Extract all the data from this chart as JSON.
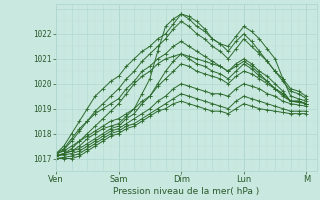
{
  "xlabel": "Pression niveau de la mer( hPa )",
  "bg_color": "#c8e8e0",
  "plot_bg_color": "#c8e8e0",
  "grid_major_color": "#b0d8d0",
  "grid_minor_color": "#c0e0d8",
  "line_color": "#2d6b2d",
  "x_ticks": [
    0,
    24,
    48,
    72,
    96
  ],
  "x_tick_labels": [
    "Ven",
    "Sam",
    "Dim",
    "Lun",
    "M"
  ],
  "ylim": [
    1016.5,
    1023.2
  ],
  "yticks": [
    1017,
    1018,
    1019,
    1020,
    1021,
    1022
  ],
  "xlim": [
    0,
    100
  ],
  "lines": [
    {
      "x": [
        0,
        3,
        6,
        9,
        12,
        15,
        18,
        21,
        24,
        27,
        30,
        33,
        36,
        39,
        42,
        45,
        48,
        51,
        54,
        57,
        60,
        63,
        66,
        69,
        72,
        75,
        78,
        81,
        84,
        87,
        90,
        93,
        96
      ],
      "y": [
        1017.1,
        1017.2,
        1017.3,
        1017.5,
        1017.8,
        1018.0,
        1018.2,
        1018.3,
        1018.4,
        1018.7,
        1019.0,
        1019.6,
        1020.2,
        1021.3,
        1022.3,
        1022.6,
        1022.8,
        1022.7,
        1022.5,
        1022.2,
        1021.8,
        1021.6,
        1021.5,
        1021.9,
        1022.3,
        1022.1,
        1021.8,
        1021.4,
        1021.0,
        1020.2,
        1019.5,
        1019.4,
        1019.3
      ]
    },
    {
      "x": [
        0,
        3,
        6,
        9,
        12,
        15,
        18,
        21,
        24,
        27,
        30,
        33,
        36,
        39,
        42,
        45,
        48,
        51,
        54,
        57,
        60,
        63,
        66,
        69,
        72,
        75,
        78,
        81,
        84,
        87,
        90,
        93,
        96
      ],
      "y": [
        1017.1,
        1017.2,
        1017.3,
        1017.4,
        1017.6,
        1017.8,
        1018.0,
        1018.2,
        1018.3,
        1018.6,
        1018.8,
        1019.2,
        1019.5,
        1020.0,
        1020.5,
        1020.9,
        1021.2,
        1021.1,
        1021.0,
        1020.9,
        1020.8,
        1020.7,
        1020.5,
        1020.8,
        1021.0,
        1020.8,
        1020.5,
        1020.3,
        1020.0,
        1019.7,
        1019.3,
        1019.3,
        1019.2
      ]
    },
    {
      "x": [
        0,
        3,
        6,
        9,
        12,
        15,
        18,
        21,
        24,
        27,
        30,
        33,
        36,
        39,
        42,
        45,
        48,
        51,
        54,
        57,
        60,
        63,
        66,
        69,
        72,
        75,
        78,
        81,
        84,
        87,
        90,
        93,
        96
      ],
      "y": [
        1017.2,
        1017.3,
        1017.5,
        1017.7,
        1017.9,
        1018.1,
        1018.3,
        1018.5,
        1018.6,
        1018.8,
        1019.0,
        1019.3,
        1019.5,
        1019.9,
        1020.2,
        1020.5,
        1020.8,
        1020.7,
        1020.5,
        1020.4,
        1020.3,
        1020.2,
        1020.0,
        1020.3,
        1020.5,
        1020.4,
        1020.2,
        1020.0,
        1019.8,
        1019.6,
        1019.3,
        1019.3,
        1019.2
      ]
    },
    {
      "x": [
        0,
        3,
        6,
        9,
        12,
        15,
        18,
        21,
        24,
        27,
        30,
        33,
        36,
        39,
        42,
        45,
        48,
        51,
        54,
        57,
        60,
        63,
        66,
        69,
        72,
        75,
        78,
        81,
        84,
        87,
        90,
        93,
        96
      ],
      "y": [
        1017.1,
        1017.15,
        1017.2,
        1017.3,
        1017.5,
        1017.7,
        1017.9,
        1018.1,
        1018.2,
        1018.4,
        1018.6,
        1018.8,
        1019.0,
        1019.3,
        1019.5,
        1019.8,
        1020.0,
        1019.9,
        1019.8,
        1019.7,
        1019.6,
        1019.6,
        1019.5,
        1019.8,
        1020.0,
        1019.9,
        1019.8,
        1019.6,
        1019.5,
        1019.3,
        1019.2,
        1019.15,
        1019.1
      ]
    },
    {
      "x": [
        0,
        3,
        6,
        9,
        12,
        15,
        18,
        21,
        24,
        27,
        30,
        33,
        36,
        39,
        42,
        45,
        48,
        51,
        54,
        57,
        60,
        63,
        66,
        69,
        72,
        75,
        78,
        81,
        84,
        87,
        90,
        93,
        96
      ],
      "y": [
        1017.0,
        1017.05,
        1017.1,
        1017.2,
        1017.4,
        1017.6,
        1017.8,
        1018.0,
        1018.1,
        1018.3,
        1018.4,
        1018.6,
        1018.8,
        1019.0,
        1019.2,
        1019.4,
        1019.6,
        1019.5,
        1019.4,
        1019.3,
        1019.2,
        1019.1,
        1019.0,
        1019.3,
        1019.5,
        1019.4,
        1019.3,
        1019.2,
        1019.1,
        1019.0,
        1018.9,
        1018.9,
        1018.9
      ]
    },
    {
      "x": [
        0,
        3,
        6,
        9,
        12,
        15,
        18,
        21,
        24,
        27,
        30,
        33,
        36,
        39,
        42,
        45,
        48,
        51,
        54,
        57,
        60,
        63,
        66,
        69,
        72,
        75,
        78,
        81,
        84,
        87,
        90,
        93,
        96
      ],
      "y": [
        1017.0,
        1017.0,
        1017.0,
        1017.1,
        1017.3,
        1017.5,
        1017.7,
        1017.9,
        1018.0,
        1018.2,
        1018.3,
        1018.5,
        1018.7,
        1018.9,
        1019.0,
        1019.2,
        1019.3,
        1019.2,
        1019.1,
        1019.0,
        1018.9,
        1018.9,
        1018.8,
        1019.0,
        1019.2,
        1019.1,
        1019.0,
        1018.95,
        1018.9,
        1018.85,
        1018.8,
        1018.8,
        1018.8
      ]
    },
    {
      "x": [
        0,
        3,
        6,
        9,
        12,
        15,
        18,
        21,
        24,
        27,
        30,
        33,
        36,
        39,
        42,
        45,
        48,
        51,
        54,
        57,
        60,
        63,
        66,
        69,
        72,
        75,
        78,
        81,
        84,
        87,
        90,
        93,
        96
      ],
      "y": [
        1017.1,
        1017.2,
        1017.4,
        1017.7,
        1018.0,
        1018.3,
        1018.6,
        1018.9,
        1019.2,
        1019.6,
        1020.0,
        1020.3,
        1020.5,
        1020.8,
        1021.0,
        1021.1,
        1021.2,
        1021.0,
        1020.8,
        1020.7,
        1020.5,
        1020.4,
        1020.2,
        1020.5,
        1020.8,
        1020.6,
        1020.3,
        1020.1,
        1019.8,
        1019.6,
        1019.3,
        1019.3,
        1019.2
      ]
    },
    {
      "x": [
        0,
        3,
        6,
        9,
        12,
        15,
        18,
        21,
        24,
        27,
        30,
        33,
        36,
        39,
        42,
        45,
        48,
        51,
        54,
        57,
        60,
        63,
        66,
        69,
        72,
        75,
        78,
        81,
        84,
        87,
        90,
        93,
        96
      ],
      "y": [
        1017.2,
        1017.4,
        1017.8,
        1018.2,
        1018.5,
        1018.9,
        1019.2,
        1019.5,
        1019.8,
        1020.2,
        1020.5,
        1020.9,
        1021.2,
        1021.5,
        1021.8,
        1022.2,
        1022.5,
        1022.3,
        1022.0,
        1021.8,
        1021.5,
        1021.3,
        1021.0,
        1021.4,
        1021.8,
        1021.5,
        1021.2,
        1020.9,
        1020.5,
        1020.2,
        1019.8,
        1019.7,
        1019.5
      ]
    },
    {
      "x": [
        0,
        3,
        6,
        9,
        12,
        15,
        18,
        21,
        24,
        27,
        30,
        33,
        36,
        39,
        42,
        45,
        48,
        51,
        54,
        57,
        60,
        63,
        66,
        69,
        72,
        75,
        78,
        81,
        84,
        87,
        90,
        93,
        96
      ],
      "y": [
        1017.2,
        1017.5,
        1018.0,
        1018.5,
        1019.0,
        1019.5,
        1019.8,
        1020.1,
        1020.3,
        1020.7,
        1021.0,
        1021.3,
        1021.5,
        1021.8,
        1022.0,
        1022.4,
        1022.8,
        1022.6,
        1022.3,
        1022.1,
        1021.8,
        1021.6,
        1021.3,
        1021.7,
        1022.0,
        1021.7,
        1021.3,
        1020.9,
        1020.5,
        1020.1,
        1019.7,
        1019.6,
        1019.4
      ]
    },
    {
      "x": [
        0,
        3,
        6,
        9,
        12,
        15,
        18,
        21,
        24,
        27,
        30,
        33,
        36,
        39,
        42,
        45,
        48,
        51,
        54,
        57,
        60,
        63,
        66,
        69,
        72,
        75,
        78,
        81,
        84,
        87,
        90,
        93,
        96
      ],
      "y": [
        1017.15,
        1017.35,
        1017.7,
        1018.1,
        1018.5,
        1018.8,
        1019.0,
        1019.2,
        1019.4,
        1019.8,
        1020.1,
        1020.5,
        1020.7,
        1021.0,
        1021.2,
        1021.5,
        1021.7,
        1021.5,
        1021.3,
        1021.1,
        1020.9,
        1020.7,
        1020.5,
        1020.7,
        1020.9,
        1020.7,
        1020.4,
        1020.1,
        1019.8,
        1019.5,
        1019.3,
        1019.25,
        1019.2
      ]
    }
  ]
}
